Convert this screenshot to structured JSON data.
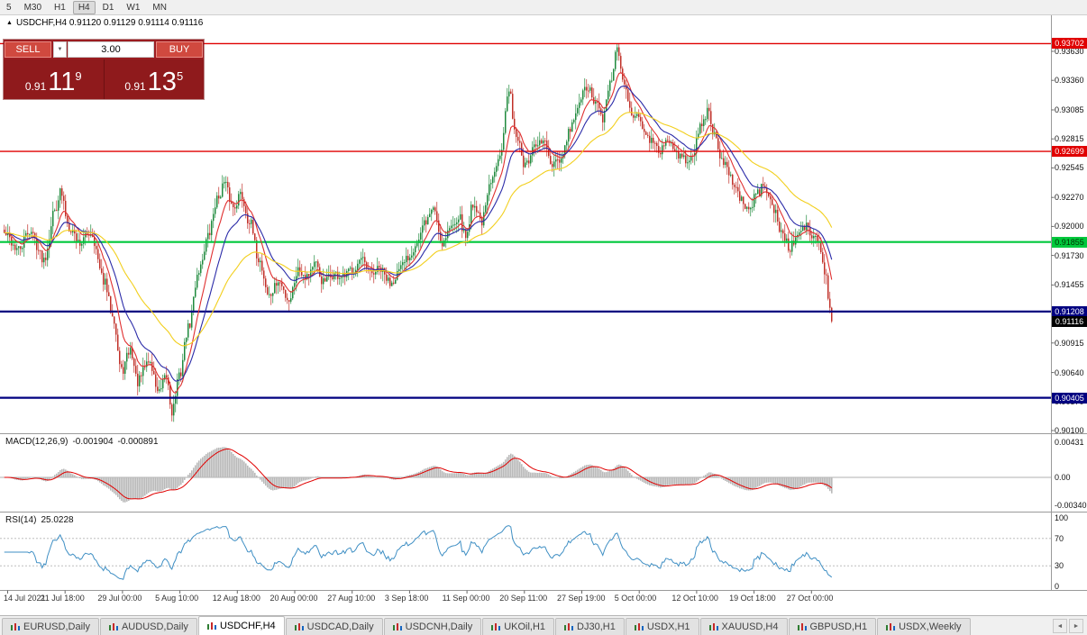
{
  "toolbar": {
    "timeframes": [
      "5",
      "M30",
      "H1",
      "H4",
      "D1",
      "W1",
      "MN"
    ],
    "active_timeframe": "H4"
  },
  "header": {
    "symbol_line": "USDCHF,H4 0.91120 0.91129 0.91114 0.91116"
  },
  "icons": {
    "symbol_arrow": "▲",
    "volume_dropdown": "▼",
    "tab_prev": "◄",
    "tab_next": "►"
  },
  "trade_panel": {
    "sell": {
      "label": "SELL",
      "price_main": "0.91",
      "price_big": "11",
      "price_sup": "9"
    },
    "buy": {
      "label": "BUY",
      "price_main": "0.91",
      "price_big": "13",
      "price_sup": "5"
    },
    "volume": "3.00"
  },
  "indicators": {
    "macd": {
      "name": "MACD(12,26,9)",
      "value_main": "-0.001904",
      "value_signal": "-0.000891",
      "axis_ticks": [
        "0.00431",
        "0.00",
        "-0.00340"
      ]
    },
    "rsi": {
      "name": "RSI(14)",
      "value": "25.0228",
      "axis_ticks": [
        "100",
        "70",
        "30",
        "0"
      ]
    }
  },
  "price_axis_ticks": [
    "0.93630",
    "0.93360",
    "0.93085",
    "0.92815",
    "0.92545",
    "0.92270",
    "0.92000",
    "0.91730",
    "0.91455",
    "0.91185",
    "0.90915",
    "0.90640",
    "0.90370",
    "0.90100"
  ],
  "time_axis_labels": [
    "14 Jul 2021",
    "21 Jul 18:00",
    "29 Jul 00:00",
    "5 Aug 10:00",
    "12 Aug 18:00",
    "20 Aug 00:00",
    "27 Aug 10:00",
    "3 Sep 18:00",
    "11 Sep 00:00",
    "20 Sep 11:00",
    "27 Sep 19:00",
    "5 Oct 00:00",
    "12 Oct 10:00",
    "19 Oct 18:00",
    "27 Oct 00:00"
  ],
  "levels": [
    {
      "label": "0.93702",
      "value": 0.93702,
      "color": "#e00000",
      "width": 1.4,
      "text_color": "#ffffff"
    },
    {
      "label": "0.92699",
      "value": 0.92699,
      "color": "#e00000",
      "width": 1.4,
      "text_color": "#ffffff"
    },
    {
      "label": "0.91855",
      "value": 0.91855,
      "color": "#00c83c",
      "width": 2.2,
      "text_color": "#003300"
    },
    {
      "label": "0.91208",
      "value": 0.91208,
      "color": "#000080",
      "width": 2.2,
      "text_color": "#ffffff"
    },
    {
      "label": "0.90405",
      "value": 0.90405,
      "color": "#000080",
      "width": 2.2,
      "text_color": "#ffffff"
    }
  ],
  "current_price": {
    "label": "0.91116",
    "value": 0.91116,
    "badge_color": "#000000"
  },
  "tabs": {
    "items": [
      "EURUSD,Daily",
      "AUDUSD,Daily",
      "USDCHF,H4",
      "USDCAD,Daily",
      "USDCNH,Daily",
      "UKOil,H1",
      "DJ30,H1",
      "USDX,H1",
      "XAUUSD,H4",
      "GBPUSD,H1",
      "USDX,Weekly"
    ],
    "active_index": 2
  },
  "colors": {
    "up_candle": "#1f8a3d",
    "down_candle": "#c03028",
    "ma_fast": "#e03030",
    "ma_mid": "#2b2ba8",
    "ma_slow": "#f2cf1d",
    "macd_hist": "#b9b9b9",
    "macd_signal": "#e00000",
    "rsi_line": "#3f8fc4"
  },
  "chart_data": {
    "type": "candlestick",
    "symbol": "USDCHF",
    "timeframe": "H4",
    "current_ohlc": {
      "open": "0.91120",
      "high": "0.91129",
      "low": "0.91114",
      "close": "0.91116"
    },
    "y_range": {
      "min": 0.901,
      "max": 0.9363
    },
    "num_candles": 460,
    "noise_seed": 42,
    "close_anchors": [
      [
        0,
        0.9193
      ],
      [
        8,
        0.9178
      ],
      [
        14,
        0.9196
      ],
      [
        22,
        0.917
      ],
      [
        28,
        0.9215
      ],
      [
        31,
        0.9232
      ],
      [
        36,
        0.92
      ],
      [
        42,
        0.9185
      ],
      [
        48,
        0.9195
      ],
      [
        55,
        0.915
      ],
      [
        60,
        0.912
      ],
      [
        65,
        0.9065
      ],
      [
        70,
        0.9085
      ],
      [
        74,
        0.9055
      ],
      [
        80,
        0.9075
      ],
      [
        86,
        0.9045
      ],
      [
        90,
        0.906
      ],
      [
        93,
        0.9028
      ],
      [
        97,
        0.906
      ],
      [
        102,
        0.9105
      ],
      [
        108,
        0.916
      ],
      [
        113,
        0.919
      ],
      [
        118,
        0.9225
      ],
      [
        122,
        0.924
      ],
      [
        127,
        0.9218
      ],
      [
        131,
        0.923
      ],
      [
        136,
        0.9205
      ],
      [
        141,
        0.917
      ],
      [
        147,
        0.9135
      ],
      [
        152,
        0.9148
      ],
      [
        158,
        0.9132
      ],
      [
        163,
        0.916
      ],
      [
        168,
        0.9155
      ],
      [
        172,
        0.9165
      ],
      [
        177,
        0.9148
      ],
      [
        183,
        0.9155
      ],
      [
        188,
        0.9152
      ],
      [
        193,
        0.916
      ],
      [
        198,
        0.9168
      ],
      [
        203,
        0.9155
      ],
      [
        208,
        0.916
      ],
      [
        214,
        0.9148
      ],
      [
        219,
        0.9158
      ],
      [
        224,
        0.9172
      ],
      [
        229,
        0.9185
      ],
      [
        234,
        0.9205
      ],
      [
        238,
        0.9218
      ],
      [
        243,
        0.9185
      ],
      [
        247,
        0.9198
      ],
      [
        252,
        0.921
      ],
      [
        256,
        0.919
      ],
      [
        260,
        0.9222
      ],
      [
        265,
        0.9205
      ],
      [
        270,
        0.924
      ],
      [
        275,
        0.927
      ],
      [
        280,
        0.9325
      ],
      [
        284,
        0.9285
      ],
      [
        289,
        0.9255
      ],
      [
        294,
        0.9272
      ],
      [
        299,
        0.928
      ],
      [
        304,
        0.9255
      ],
      [
        309,
        0.9262
      ],
      [
        314,
        0.929
      ],
      [
        318,
        0.931
      ],
      [
        323,
        0.933
      ],
      [
        328,
        0.9315
      ],
      [
        332,
        0.93
      ],
      [
        337,
        0.934
      ],
      [
        340,
        0.9365
      ],
      [
        344,
        0.933
      ],
      [
        349,
        0.9305
      ],
      [
        354,
        0.9295
      ],
      [
        358,
        0.928
      ],
      [
        363,
        0.927
      ],
      [
        368,
        0.9282
      ],
      [
        372,
        0.927
      ],
      [
        377,
        0.9262
      ],
      [
        382,
        0.9268
      ],
      [
        387,
        0.9295
      ],
      [
        390,
        0.9308
      ],
      [
        394,
        0.9285
      ],
      [
        399,
        0.9258
      ],
      [
        404,
        0.9242
      ],
      [
        409,
        0.9225
      ],
      [
        413,
        0.9215
      ],
      [
        418,
        0.9232
      ],
      [
        422,
        0.9238
      ],
      [
        427,
        0.9215
      ],
      [
        431,
        0.9195
      ],
      [
        436,
        0.918
      ],
      [
        440,
        0.9192
      ],
      [
        444,
        0.92
      ],
      [
        448,
        0.9192
      ],
      [
        452,
        0.9185
      ],
      [
        455,
        0.916
      ],
      [
        458,
        0.9125
      ],
      [
        460,
        0.9112
      ]
    ],
    "wick_overrides": [
      [
        93,
        "l",
        0.90185
      ],
      [
        280,
        "h",
        0.9332
      ],
      [
        340,
        "h",
        0.937
      ],
      [
        31,
        "h",
        0.9236
      ]
    ],
    "moving_averages": [
      {
        "period": 10,
        "color_key": "ma_fast"
      },
      {
        "period": 21,
        "color_key": "ma_mid"
      },
      {
        "period": 55,
        "color_key": "ma_slow"
      }
    ],
    "macd_params": [
      12,
      26,
      9
    ],
    "rsi_period": 14
  }
}
